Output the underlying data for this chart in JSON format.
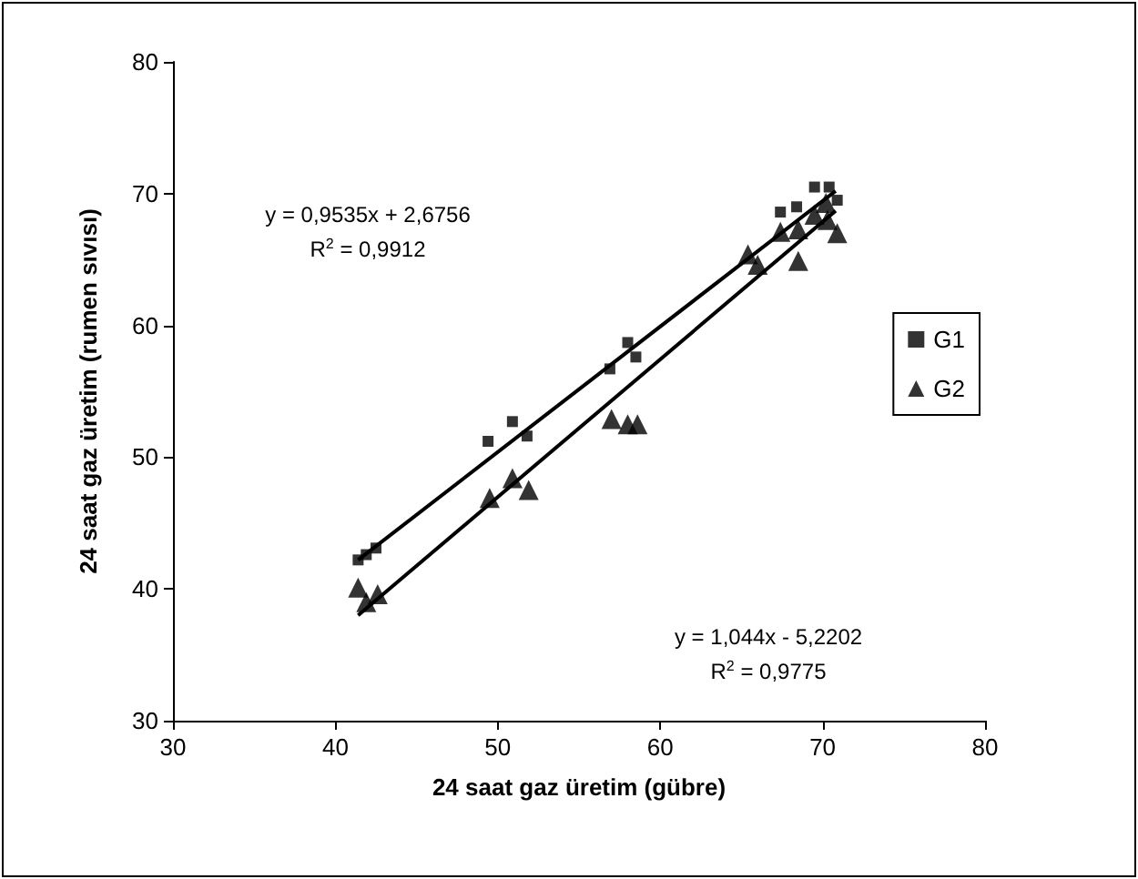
{
  "chart_data": {
    "type": "scatter",
    "xlabel": "24 saat gaz üretim (gübre)",
    "ylabel": "24 saat gaz üretim (rumen sıvısı)",
    "xlim": [
      30,
      80
    ],
    "xticks": [
      30,
      40,
      50,
      60,
      70,
      80
    ],
    "ylim": [
      30,
      80
    ],
    "yticks": [
      30,
      40,
      50,
      60,
      70,
      80
    ],
    "grid": false,
    "legend": "right",
    "series": [
      {
        "name": "G1",
        "color": "#000000",
        "marker": "square",
        "x": [
          41.4,
          41.9,
          42.5,
          49.4,
          50.9,
          51.8,
          56.9,
          58.0,
          58.5,
          65.5,
          67.4,
          68.4,
          69.5,
          70.4,
          70.9
        ],
        "values": [
          42.2,
          42.6,
          43.1,
          51.2,
          52.7,
          51.6,
          56.7,
          58.7,
          57.6,
          null,
          68.6,
          69.0,
          70.5,
          70.5,
          69.5
        ]
      },
      {
        "name": "G2",
        "color": "#000000",
        "marker": "triangle",
        "x": [
          41.4,
          41.9,
          42.6,
          49.5,
          50.9,
          51.9,
          57.0,
          58.0,
          58.6,
          65.4,
          66.0,
          67.4,
          68.5,
          68.5,
          69.5,
          70.3,
          70.9,
          70.2
        ],
        "values": [
          40.1,
          39.0,
          39.6,
          46.9,
          48.4,
          47.5,
          52.9,
          52.5,
          52.5,
          65.4,
          64.6,
          67.1,
          67.3,
          64.9,
          68.4,
          68.0,
          67.0,
          69.3
        ]
      },
      {
        "type": "line",
        "color": "#000000",
        "marker": "none",
        "x": [
          41.4,
          70.8
        ],
        "values": [
          42.2,
          70.2
        ]
      },
      {
        "type": "line",
        "color": "#000000",
        "marker": "none",
        "x": [
          41.4,
          70.8
        ],
        "values": [
          38.0,
          68.7
        ]
      }
    ],
    "annotations": [
      "y = 0,9535x + 2,6756",
      "R$^{2}$ = 0,9912",
      "y = 1,044x - 5,2202",
      "R$^{2}$ = 0,9775"
    ]
  }
}
